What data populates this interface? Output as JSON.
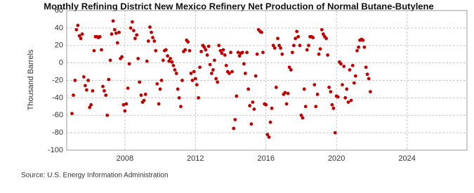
{
  "chart_data": {
    "type": "scatter",
    "title": "Monthly Refining District New Mexico Refinery Net Production of Normal Butane-Butylene",
    "y_label": "Thousand Barrels",
    "source": "Source: U.S. Energy Information Administration",
    "xlim": [
      2004.7,
      2027.4
    ],
    "xticks": [
      2008,
      2012,
      2016,
      2020,
      2024
    ],
    "ylim": [
      -100,
      60
    ],
    "yticks": [
      -100,
      -80,
      -60,
      -40,
      -20,
      0,
      20,
      40,
      60
    ],
    "grid": true,
    "color": "#c00000",
    "x": [
      2005,
      2005.08,
      2005.17,
      2005.25,
      2005.33,
      2005.42,
      2005.5,
      2005.58,
      2005.67,
      2005.75,
      2005.83,
      2005.92,
      2006,
      2006.08,
      2006.17,
      2006.25,
      2006.33,
      2006.42,
      2006.5,
      2006.58,
      2006.67,
      2006.75,
      2006.83,
      2006.92,
      2007,
      2007.08,
      2007.17,
      2007.25,
      2007.33,
      2007.42,
      2007.5,
      2007.58,
      2007.67,
      2007.75,
      2007.83,
      2007.92,
      2008,
      2008.08,
      2008.17,
      2008.25,
      2008.33,
      2008.42,
      2008.5,
      2008.58,
      2008.67,
      2008.75,
      2008.83,
      2008.92,
      2009,
      2009.08,
      2009.17,
      2009.25,
      2009.33,
      2009.42,
      2009.5,
      2009.58,
      2009.67,
      2009.75,
      2009.83,
      2009.92,
      2010,
      2010.08,
      2010.17,
      2010.25,
      2010.33,
      2010.42,
      2010.5,
      2010.58,
      2010.67,
      2010.75,
      2010.83,
      2010.92,
      2011,
      2011.08,
      2011.17,
      2011.25,
      2011.33,
      2011.42,
      2011.5,
      2011.58,
      2011.67,
      2011.75,
      2011.83,
      2011.92,
      2012,
      2012.08,
      2012.17,
      2012.25,
      2012.33,
      2012.42,
      2012.5,
      2012.58,
      2012.67,
      2012.75,
      2012.83,
      2012.92,
      2013,
      2013.08,
      2013.17,
      2013.25,
      2013.33,
      2013.42,
      2013.5,
      2013.58,
      2013.67,
      2013.75,
      2013.83,
      2013.92,
      2014,
      2014.08,
      2014.17,
      2014.25,
      2014.33,
      2014.42,
      2014.5,
      2014.58,
      2014.67,
      2014.75,
      2014.83,
      2014.92,
      2015,
      2015.08,
      2015.17,
      2015.25,
      2015.33,
      2015.42,
      2015.5,
      2015.58,
      2015.67,
      2015.75,
      2015.83,
      2015.92,
      2016,
      2016.08,
      2016.17,
      2016.25,
      2016.33,
      2016.42,
      2016.5,
      2016.58,
      2016.67,
      2016.75,
      2016.83,
      2016.92,
      2017,
      2017.08,
      2017.17,
      2017.25,
      2017.33,
      2017.42,
      2017.5,
      2017.58,
      2017.67,
      2017.75,
      2017.83,
      2017.92,
      2018,
      2018.08,
      2018.17,
      2018.25,
      2018.33,
      2018.42,
      2018.5,
      2018.58,
      2018.67,
      2018.75,
      2018.83,
      2018.92,
      2019,
      2019.08,
      2019.17,
      2019.25,
      2019.33,
      2019.42,
      2019.5,
      2019.58,
      2019.67,
      2019.75,
      2019.83,
      2019.92,
      2020,
      2020.08,
      2020.17,
      2020.25,
      2020.33,
      2020.42,
      2020.5,
      2020.58,
      2020.67,
      2020.75,
      2020.83,
      2020.92,
      2021,
      2021.08,
      2021.17,
      2021.25,
      2021.33,
      2021.42,
      2021.5,
      2021.58,
      2021.67,
      2021.75,
      2021.83,
      2021.92
    ],
    "values": [
      -58,
      -37,
      -20,
      38,
      43,
      31,
      28,
      33,
      -16,
      -26,
      -31,
      -20,
      -51,
      -48,
      -32,
      14,
      30,
      30,
      29,
      30,
      15,
      -27,
      -32,
      -37,
      -60,
      -19,
      3,
      33,
      48,
      38,
      34,
      23,
      35,
      5,
      7,
      -48,
      -55,
      -47,
      -29,
      -1,
      40,
      47,
      37,
      28,
      32,
      5,
      -22,
      -37,
      -45,
      -43,
      -36,
      2,
      25,
      41,
      35,
      29,
      25,
      14,
      -24,
      -47,
      -30,
      -20,
      3,
      14,
      15,
      8,
      2,
      5,
      1,
      -3,
      -8,
      -12,
      -30,
      -40,
      -50,
      -20,
      13,
      15,
      26,
      24,
      14,
      -12,
      -20,
      -10,
      -18,
      -25,
      -40,
      -5,
      13,
      20,
      18,
      15,
      9,
      19,
      -2,
      -12,
      -8,
      3,
      -18,
      -22,
      20,
      14,
      11,
      15,
      9,
      -3,
      -10,
      -12,
      12,
      -10,
      -75,
      -65,
      -38,
      12,
      8,
      11,
      12,
      -1,
      -12,
      12,
      -30,
      -49,
      -70,
      -45,
      -53,
      -15,
      10,
      38,
      36,
      35,
      12,
      -47,
      -48,
      -82,
      -85,
      -68,
      -52,
      20,
      17,
      -28,
      28,
      20,
      17,
      10,
      -36,
      -34,
      -47,
      -35,
      -5,
      -8,
      12,
      20,
      28,
      36,
      30,
      20,
      -60,
      -63,
      -30,
      -50,
      15,
      20,
      30,
      30,
      29,
      -25,
      -50,
      -36,
      10,
      16,
      38,
      33,
      30,
      28,
      9,
      -28,
      -33,
      -48,
      -52,
      -80,
      -38,
      -39,
      1,
      -1,
      -25,
      -4,
      -40,
      -30,
      -45,
      -8,
      -43,
      -3,
      -23,
      -15,
      14,
      18,
      26,
      27,
      26,
      18,
      -5,
      -13,
      -18,
      -33
    ]
  }
}
